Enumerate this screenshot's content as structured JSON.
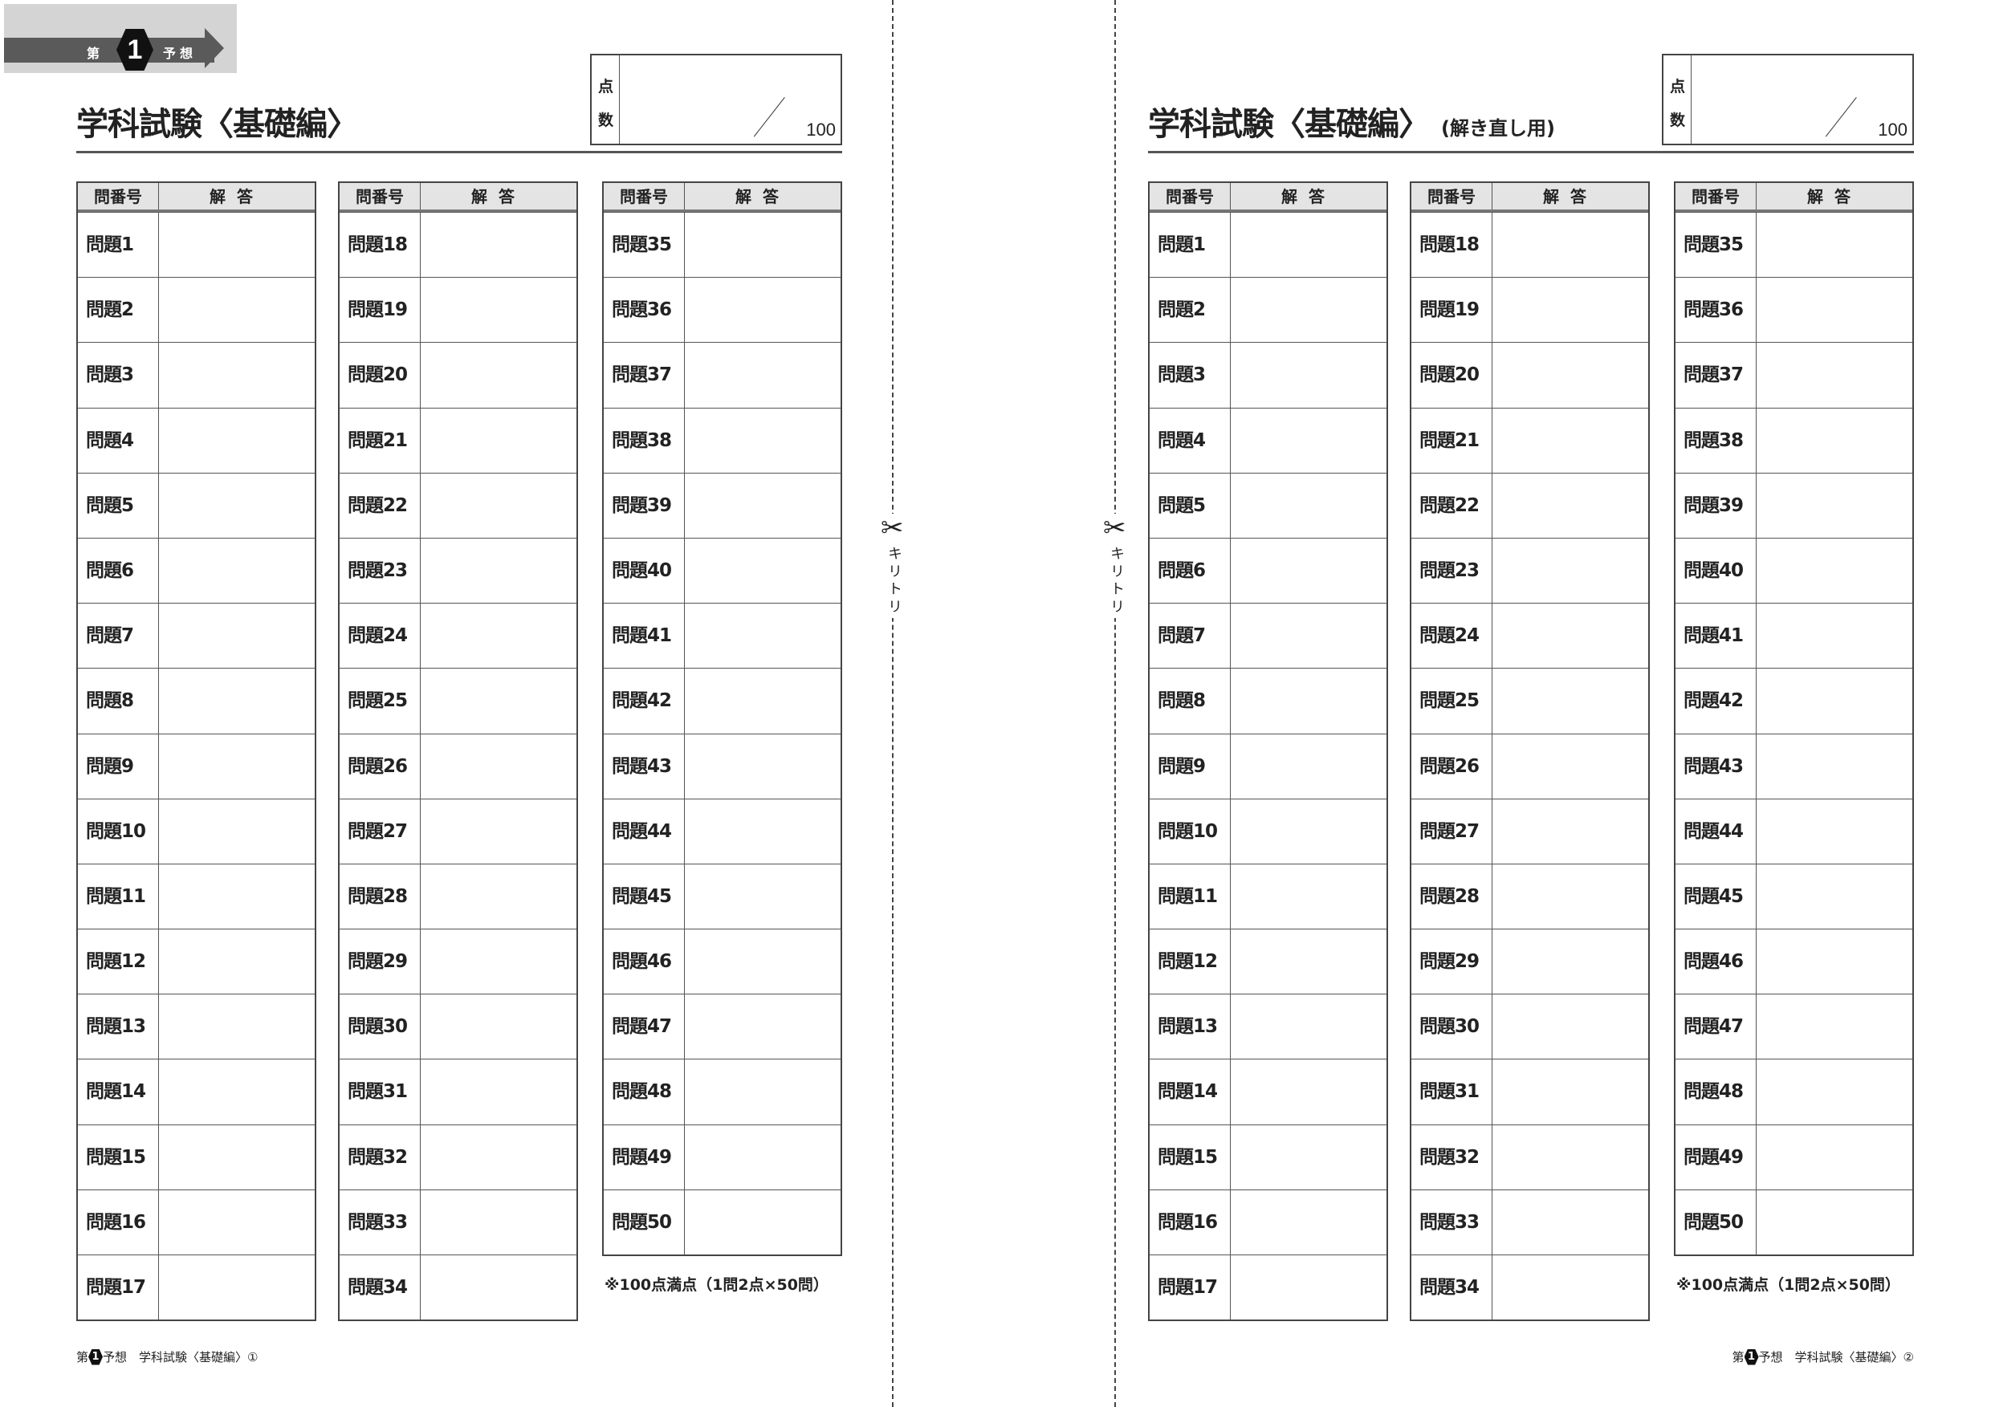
{
  "badge": {
    "prefix": "第",
    "number": "1",
    "suffix": "予想"
  },
  "cut_label": "キリトリ",
  "scissors_icon": "scissors-icon",
  "pages": [
    {
      "title": "学科試験〈基礎編〉",
      "subtitle": "",
      "score": {
        "label_top": "点",
        "label_bottom": "数",
        "max": "100"
      },
      "header": {
        "q": "問番号",
        "a": "解答"
      },
      "tables": [
        [
          "問題1",
          "問題2",
          "問題3",
          "問題4",
          "問題5",
          "問題6",
          "問題7",
          "問題8",
          "問題9",
          "問題10",
          "問題11",
          "問題12",
          "問題13",
          "問題14",
          "問題15",
          "問題16",
          "問題17"
        ],
        [
          "問題18",
          "問題19",
          "問題20",
          "問題21",
          "問題22",
          "問題23",
          "問題24",
          "問題25",
          "問題26",
          "問題27",
          "問題28",
          "問題29",
          "問題30",
          "問題31",
          "問題32",
          "問題33",
          "問題34"
        ],
        [
          "問題35",
          "問題36",
          "問題37",
          "問題38",
          "問題39",
          "問題40",
          "問題41",
          "問題42",
          "問題43",
          "問題44",
          "問題45",
          "問題46",
          "問題47",
          "問題48",
          "問題49",
          "問題50"
        ]
      ],
      "note": "※100点満点（1問2点×50問）",
      "footer": {
        "prefix": "第",
        "number": "1",
        "suffix": "予想　学科試験〈基礎編〉①"
      }
    },
    {
      "title": "学科試験〈基礎編〉",
      "subtitle": "(解き直し用)",
      "score": {
        "label_top": "点",
        "label_bottom": "数",
        "max": "100"
      },
      "header": {
        "q": "問番号",
        "a": "解答"
      },
      "tables": [
        [
          "問題1",
          "問題2",
          "問題3",
          "問題4",
          "問題5",
          "問題6",
          "問題7",
          "問題8",
          "問題9",
          "問題10",
          "問題11",
          "問題12",
          "問題13",
          "問題14",
          "問題15",
          "問題16",
          "問題17"
        ],
        [
          "問題18",
          "問題19",
          "問題20",
          "問題21",
          "問題22",
          "問題23",
          "問題24",
          "問題25",
          "問題26",
          "問題27",
          "問題28",
          "問題29",
          "問題30",
          "問題31",
          "問題32",
          "問題33",
          "問題34"
        ],
        [
          "問題35",
          "問題36",
          "問題37",
          "問題38",
          "問題39",
          "問題40",
          "問題41",
          "問題42",
          "問題43",
          "問題44",
          "問題45",
          "問題46",
          "問題47",
          "問題48",
          "問題49",
          "問題50"
        ]
      ],
      "note": "※100点満点（1問2点×50問）",
      "footer": {
        "prefix": "第",
        "number": "1",
        "suffix": "予想　学科試験〈基礎編〉②"
      }
    }
  ]
}
